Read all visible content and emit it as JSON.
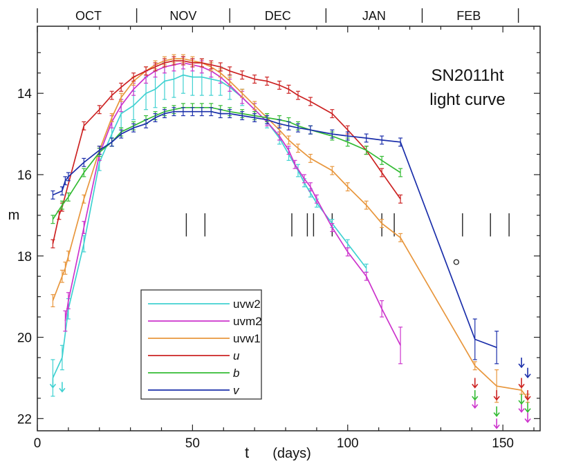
{
  "chart_data": {
    "type": "line",
    "title": "SN2011ht",
    "subtitle": "light curve",
    "xlabel": "t",
    "xlabel_units": "(days)",
    "ylabel": "m",
    "xlim": [
      0,
      162
    ],
    "ylim": [
      22.3,
      12.35
    ],
    "y_inverted": true,
    "grid": false,
    "legend_position": "lower-left",
    "x_ticks": [
      0,
      50,
      100,
      150
    ],
    "x_tick_labels": [
      "0",
      "50",
      "100",
      "150"
    ],
    "y_ticks": [
      14,
      16,
      18,
      20,
      22
    ],
    "y_tick_labels": [
      "14",
      "16",
      "18",
      "20",
      "22"
    ],
    "months": [
      {
        "label": "OCT",
        "center": 16.5
      },
      {
        "label": "NOV",
        "center": 47
      },
      {
        "label": "DEC",
        "center": 77.5
      },
      {
        "label": "JAN",
        "center": 108.5
      },
      {
        "label": "FEB",
        "center": 139
      }
    ],
    "month_boundaries": [
      0,
      32,
      62,
      93,
      124,
      155
    ],
    "epoch_marks": [
      48,
      54,
      82,
      87,
      89,
      95,
      111,
      115,
      137,
      146,
      152
    ],
    "annotations": [
      {
        "type": "open-circle",
        "x": 135,
        "y": 18.15
      }
    ],
    "series": [
      {
        "name": "uvw2",
        "color": "#3fd1d1",
        "x": [
          5,
          8,
          10,
          15,
          20,
          24,
          27,
          31,
          35,
          38,
          41,
          44,
          47,
          50,
          53,
          56,
          59,
          62,
          66,
          70,
          74,
          78,
          81,
          84,
          86,
          88,
          90,
          95,
          100,
          106
        ],
        "y": [
          21.0,
          20.5,
          19.3,
          17.7,
          15.7,
          15.0,
          14.5,
          14.3,
          14.0,
          13.9,
          13.7,
          13.65,
          13.55,
          13.6,
          13.6,
          13.65,
          13.7,
          13.85,
          14.1,
          14.4,
          14.7,
          15.1,
          15.5,
          15.9,
          16.2,
          16.45,
          16.7,
          17.2,
          17.7,
          18.3
        ],
        "err": [
          0.45,
          0.3,
          0.25,
          0.2,
          0.2,
          0.3,
          0.35,
          0.35,
          0.4,
          0.45,
          0.45,
          0.45,
          0.45,
          0.45,
          0.45,
          0.4,
          0.35,
          0.3,
          0.2,
          0.15,
          0.15,
          0.15,
          0.15,
          0.15,
          0.1,
          0.1,
          0.1,
          0.1,
          0.1,
          0.1
        ],
        "upper_limits_x": [
          5,
          8
        ],
        "upper_limits_y": [
          21.0,
          21.1
        ]
      },
      {
        "name": "uvm2",
        "color": "#cc33cc",
        "x": [
          9,
          10,
          15,
          20,
          24,
          27,
          31,
          35,
          38,
          41,
          44,
          47,
          50,
          53,
          56,
          59,
          62,
          66,
          70,
          74,
          78,
          81,
          83,
          86,
          88,
          90,
          95,
          100,
          106,
          111,
          117
        ],
        "y": [
          19.6,
          19.1,
          17.3,
          15.5,
          14.7,
          14.3,
          13.9,
          13.6,
          13.45,
          13.35,
          13.3,
          13.25,
          13.3,
          13.35,
          13.45,
          13.6,
          13.8,
          14.1,
          14.4,
          14.7,
          15.05,
          15.4,
          15.75,
          16.1,
          16.3,
          16.6,
          17.3,
          17.9,
          18.5,
          19.3,
          20.2
        ],
        "err": [
          0.25,
          0.2,
          0.15,
          0.15,
          0.15,
          0.15,
          0.15,
          0.15,
          0.15,
          0.15,
          0.15,
          0.15,
          0.15,
          0.15,
          0.15,
          0.15,
          0.15,
          0.15,
          0.15,
          0.1,
          0.1,
          0.1,
          0.1,
          0.1,
          0.1,
          0.1,
          0.1,
          0.1,
          0.1,
          0.2,
          0.45
        ],
        "upper_limits_x": [
          141,
          148,
          156,
          158
        ],
        "upper_limits_y": [
          21.5,
          22.0,
          21.6,
          21.85
        ]
      },
      {
        "name": "uvw1",
        "color": "#e8963c",
        "x": [
          5,
          8,
          9,
          10,
          15,
          20,
          24,
          27,
          31,
          35,
          38,
          41,
          44,
          47,
          50,
          53,
          56,
          59,
          62,
          66,
          70,
          74,
          78,
          81,
          84,
          88,
          95,
          100,
          106,
          111,
          117,
          141,
          148,
          156,
          158
        ],
        "y": [
          19.1,
          18.5,
          18.3,
          18.0,
          16.6,
          15.4,
          14.6,
          14.1,
          13.7,
          13.45,
          13.3,
          13.2,
          13.15,
          13.15,
          13.2,
          13.25,
          13.35,
          13.5,
          13.7,
          14.0,
          14.3,
          14.6,
          14.9,
          15.15,
          15.35,
          15.6,
          15.9,
          16.3,
          16.75,
          17.2,
          17.55,
          20.7,
          21.2,
          21.3,
          21.5
        ],
        "err": [
          0.15,
          0.15,
          0.15,
          0.12,
          0.1,
          0.1,
          0.1,
          0.1,
          0.1,
          0.1,
          0.1,
          0.1,
          0.1,
          0.1,
          0.1,
          0.1,
          0.1,
          0.1,
          0.1,
          0.1,
          0.1,
          0.1,
          0.1,
          0.1,
          0.1,
          0.1,
          0.1,
          0.1,
          0.1,
          0.1,
          0.1,
          0.1,
          0.4,
          0.1,
          0.1
        ],
        "upper_limits_x": [],
        "upper_limits_y": []
      },
      {
        "name": "u",
        "color": "#cc2222",
        "x": [
          5,
          7,
          8,
          15,
          20,
          24,
          27,
          31,
          35,
          38,
          41,
          44,
          47,
          50,
          53,
          56,
          59,
          62,
          66,
          70,
          74,
          78,
          81,
          84,
          88,
          95,
          100,
          106,
          111,
          117
        ],
        "y": [
          17.7,
          17.0,
          16.8,
          14.8,
          14.4,
          14.05,
          13.85,
          13.6,
          13.45,
          13.35,
          13.25,
          13.2,
          13.2,
          13.25,
          13.25,
          13.3,
          13.35,
          13.45,
          13.55,
          13.65,
          13.7,
          13.8,
          13.9,
          14.05,
          14.2,
          14.5,
          14.9,
          15.4,
          15.95,
          16.6
        ],
        "err": [
          0.1,
          0.1,
          0.1,
          0.1,
          0.1,
          0.1,
          0.1,
          0.1,
          0.1,
          0.1,
          0.1,
          0.1,
          0.1,
          0.1,
          0.1,
          0.1,
          0.1,
          0.1,
          0.1,
          0.1,
          0.1,
          0.1,
          0.1,
          0.1,
          0.1,
          0.1,
          0.1,
          0.1,
          0.1,
          0.1
        ],
        "upper_limits_x": [
          141,
          148,
          156,
          158
        ],
        "upper_limits_y": [
          21.0,
          21.3,
          21.0,
          21.3
        ]
      },
      {
        "name": "b",
        "color": "#33bb33",
        "x": [
          5,
          8,
          10,
          15,
          20,
          24,
          27,
          31,
          35,
          38,
          41,
          44,
          47,
          50,
          53,
          56,
          59,
          62,
          66,
          70,
          74,
          78,
          81,
          84,
          88,
          95,
          100,
          106,
          111,
          117
        ],
        "y": [
          17.1,
          16.75,
          16.55,
          15.95,
          15.45,
          15.2,
          14.95,
          14.8,
          14.65,
          14.55,
          14.45,
          14.4,
          14.35,
          14.35,
          14.35,
          14.35,
          14.4,
          14.45,
          14.5,
          14.55,
          14.6,
          14.65,
          14.7,
          14.8,
          14.9,
          15.05,
          15.2,
          15.4,
          15.65,
          15.95
        ],
        "err": [
          0.1,
          0.1,
          0.1,
          0.1,
          0.1,
          0.1,
          0.1,
          0.1,
          0.1,
          0.1,
          0.1,
          0.1,
          0.1,
          0.1,
          0.1,
          0.1,
          0.1,
          0.1,
          0.1,
          0.1,
          0.1,
          0.1,
          0.1,
          0.1,
          0.1,
          0.1,
          0.1,
          0.1,
          0.1,
          0.1
        ],
        "upper_limits_x": [
          141,
          148,
          156,
          158
        ],
        "upper_limits_y": [
          21.3,
          21.7,
          21.4,
          21.6
        ]
      },
      {
        "name": "v",
        "color": "#1a2eaa",
        "x": [
          5,
          8,
          9,
          10,
          15,
          20,
          24,
          27,
          31,
          35,
          38,
          41,
          44,
          47,
          50,
          53,
          56,
          59,
          62,
          66,
          70,
          74,
          78,
          81,
          84,
          88,
          95,
          100,
          106,
          111,
          117,
          141,
          148
        ],
        "y": [
          16.5,
          16.4,
          16.15,
          16.05,
          15.7,
          15.4,
          15.2,
          15.0,
          14.85,
          14.75,
          14.6,
          14.5,
          14.45,
          14.45,
          14.45,
          14.45,
          14.45,
          14.5,
          14.5,
          14.55,
          14.6,
          14.65,
          14.75,
          14.8,
          14.85,
          14.9,
          15.0,
          15.05,
          15.1,
          15.15,
          15.2,
          20.05,
          20.25
        ],
        "err": [
          0.1,
          0.1,
          0.1,
          0.1,
          0.1,
          0.1,
          0.1,
          0.1,
          0.1,
          0.1,
          0.1,
          0.1,
          0.1,
          0.1,
          0.1,
          0.1,
          0.1,
          0.1,
          0.1,
          0.1,
          0.1,
          0.1,
          0.1,
          0.1,
          0.1,
          0.1,
          0.1,
          0.1,
          0.1,
          0.1,
          0.1,
          0.5,
          0.4
        ],
        "upper_limits_x": [
          156,
          158
        ],
        "upper_limits_y": [
          20.5,
          20.75
        ]
      }
    ]
  }
}
